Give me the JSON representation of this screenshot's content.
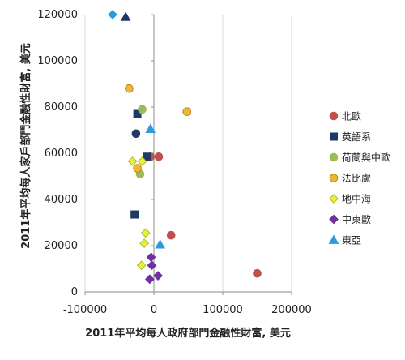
{
  "chart_data": {
    "type": "scatter",
    "xlabel": "2011年平均每人政府部門金融性財富, 美元",
    "ylabel": "2011年平均每人家戶部門金融性財富, 美元",
    "xlim": [
      -100000,
      200000
    ],
    "ylim": [
      0,
      120000
    ],
    "x_ticks": [
      -100000,
      0,
      100000,
      200000
    ],
    "y_ticks": [
      0,
      20000,
      40000,
      60000,
      80000,
      100000,
      120000
    ],
    "x_tick_labels": [
      "-100000",
      "0",
      "100000",
      "200000"
    ],
    "y_tick_labels": [
      "0",
      "20000",
      "40000",
      "60000",
      "80000",
      "100000",
      "120000"
    ],
    "vertical_gridlines": true,
    "horizontal_gridlines": false,
    "legend_position": "right",
    "series": [
      {
        "name": "北歐",
        "marker": "circle",
        "color": "#c0504d",
        "stroke": "#c0504d",
        "points": [
          [
            -5000,
            58500
          ],
          [
            7000,
            58500
          ],
          [
            25000,
            24500
          ],
          [
            150000,
            8000
          ]
        ]
      },
      {
        "name": "英語系",
        "marker": "square",
        "color": "#1f3864",
        "stroke": "#1f3864",
        "points": [
          [
            -24000,
            77000
          ],
          [
            -10000,
            58500
          ],
          [
            -28000,
            33500
          ]
        ]
      },
      {
        "name": "荷蘭與中歐",
        "marker": "circle",
        "color": "#9bbb59",
        "stroke": "#9bbb59",
        "points": [
          [
            -17000,
            79000
          ],
          [
            -20000,
            51000
          ]
        ]
      },
      {
        "name": "法比盧",
        "marker": "circle",
        "color": "#f0b63c",
        "stroke": "#b8860b",
        "points": [
          [
            -36000,
            88000
          ],
          [
            48000,
            78000
          ],
          [
            -24000,
            53500
          ]
        ]
      },
      {
        "name": "地中海",
        "marker": "diamond",
        "color": "#e8f03c",
        "stroke": "#b5b820",
        "points": [
          [
            -31000,
            56500
          ],
          [
            -17000,
            56500
          ],
          [
            -12000,
            25500
          ],
          [
            -14000,
            21000
          ],
          [
            -18000,
            11500
          ]
        ]
      },
      {
        "name": "中東歐",
        "marker": "diamond",
        "color": "#7030a0",
        "stroke": "#7030a0",
        "points": [
          [
            -4000,
            15000
          ],
          [
            -3000,
            11500
          ],
          [
            6000,
            7000
          ],
          [
            -6000,
            5500
          ]
        ]
      },
      {
        "name": "東亞",
        "marker": "triangle",
        "color": "#2e9ad6",
        "stroke": "#2e9ad6",
        "points": [
          [
            -5000,
            70500
          ],
          [
            9000,
            20500
          ]
        ]
      }
    ],
    "extra_points": [
      {
        "marker": "diamond",
        "color": "#2e9ad6",
        "stroke": "#2e9ad6",
        "point": [
          -60000,
          120000
        ]
      },
      {
        "marker": "triangle",
        "color": "#1f3864",
        "stroke": "#1f3864",
        "point": [
          -41000,
          119000
        ]
      },
      {
        "marker": "circle",
        "color": "#1f3864",
        "stroke": "#1f3864",
        "point": [
          -26000,
          68500
        ]
      }
    ]
  }
}
